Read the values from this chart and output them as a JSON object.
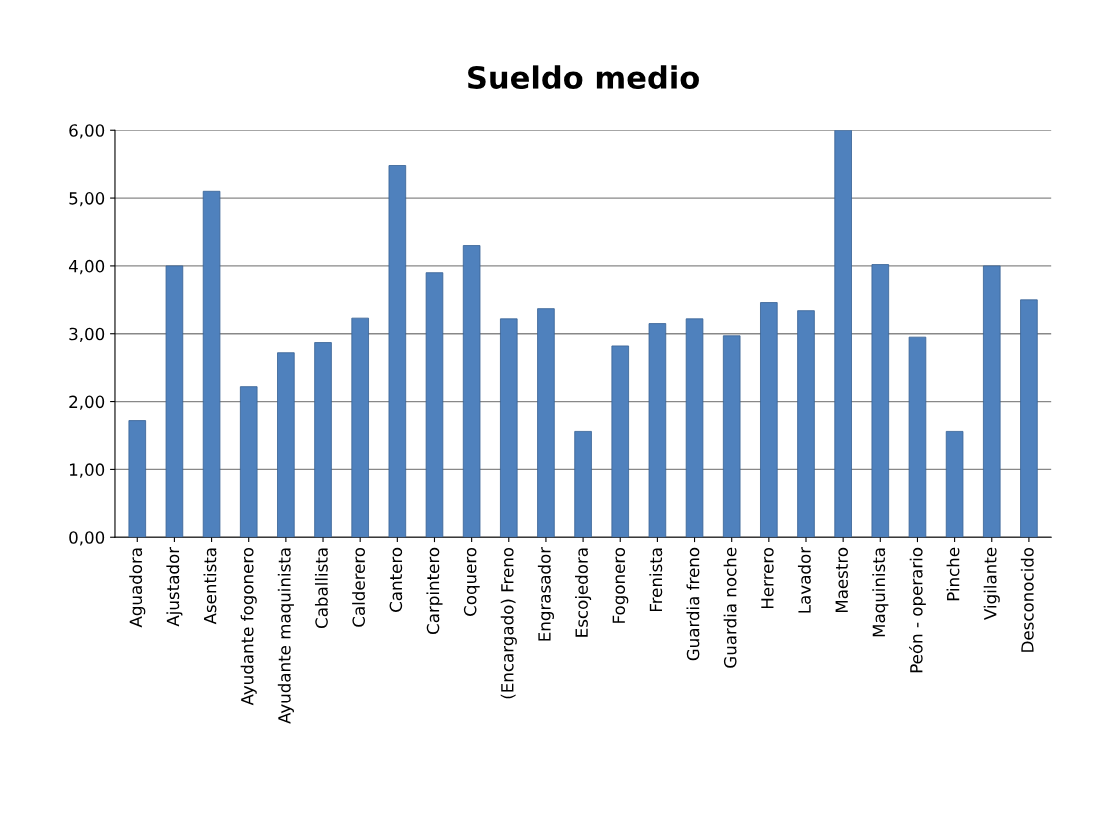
{
  "chart_data": {
    "type": "bar",
    "title": "Sueldo medio",
    "categories": [
      "Aguadora",
      "Ajustador",
      "Asentista",
      "Ayudante fogonero",
      "Ayudante maquinista",
      "Caballista",
      "Calderero",
      "Cantero",
      "Carpintero",
      "Coquero",
      "(Encargado) Freno",
      "Engrasador",
      "Escojedora",
      "Fogonero",
      "Frenista",
      "Guardia freno",
      "Guardia noche",
      "Herrero",
      "Lavador",
      "Maestro",
      "Maquinista",
      "Peón - operario",
      "Pinche",
      "Vigilante",
      "Desconocido"
    ],
    "values": [
      1.72,
      4.0,
      5.1,
      2.22,
      2.72,
      2.87,
      3.23,
      5.48,
      3.9,
      4.3,
      3.22,
      3.37,
      1.56,
      2.82,
      3.15,
      3.22,
      2.97,
      3.46,
      3.34,
      6.0,
      4.02,
      2.95,
      1.56,
      4.0,
      3.5
    ],
    "color": "#4f81bd",
    "ylim": [
      0,
      6
    ],
    "yticks": [
      {
        "value": 0,
        "label": "0,00"
      },
      {
        "value": 1,
        "label": "1,00"
      },
      {
        "value": 2,
        "label": "2,00"
      },
      {
        "value": 3,
        "label": "3,00"
      },
      {
        "value": 4,
        "label": "4,00"
      },
      {
        "value": 5,
        "label": "5,00"
      },
      {
        "value": 6,
        "label": "6,00"
      }
    ],
    "grid": "y"
  }
}
